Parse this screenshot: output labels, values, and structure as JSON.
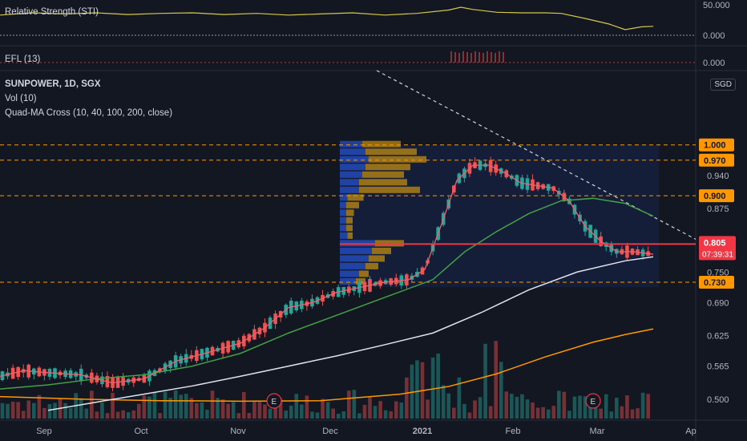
{
  "chart_data": {
    "type": "candlestick",
    "symbol": "SUNPOWER",
    "interval": "1D",
    "exchange": "SGX",
    "currency": "SGD",
    "indicators": {
      "sti_label": "Relative Strength (STI)",
      "efl_label": "EFL (13)",
      "vol_label": "Vol (10)",
      "ma_label": "Quad-MA Cross (10, 40, 100, 200, close)"
    },
    "sti_ticks": [
      "50.000",
      "0.000"
    ],
    "efl_ticks": [
      "0.000"
    ],
    "price_ticks": [
      "0.940",
      "0.875",
      "0.750",
      "0.690",
      "0.625",
      "0.565",
      "0.500"
    ],
    "x_ticks": [
      "Sep",
      "Oct",
      "Nov",
      "Dec",
      "2021",
      "Feb",
      "Mar",
      "Ap"
    ],
    "levels": [
      {
        "price": "1.000",
        "value": 1.0
      },
      {
        "price": "0.970",
        "value": 0.97
      },
      {
        "price": "0.900",
        "value": 0.9
      },
      {
        "price": "0.730",
        "value": 0.73
      }
    ],
    "last_price": {
      "label": "0.805",
      "value": 0.805,
      "countdown": "07:39:31"
    },
    "earnings_marker": "E",
    "colors": {
      "up": "#26a69a",
      "down": "#ef5350",
      "level": "#ff9800",
      "ma10": "#f06070",
      "ma40": "#43a047",
      "ma100": "#e0e3eb",
      "ma200": "#ff9800",
      "sti": "#d4c84a",
      "last": "#f23645"
    },
    "price_range": [
      0.465,
      1.08
    ],
    "ma10": [
      [
        0,
        0.545
      ],
      [
        30,
        0.556
      ],
      [
        60,
        0.552
      ],
      [
        100,
        0.548
      ],
      [
        140,
        0.532
      ],
      [
        180,
        0.54
      ],
      [
        220,
        0.575
      ],
      [
        260,
        0.592
      ],
      [
        300,
        0.61
      ],
      [
        330,
        0.64
      ],
      [
        360,
        0.68
      ],
      [
        390,
        0.69
      ],
      [
        420,
        0.71
      ],
      [
        450,
        0.72
      ],
      [
        480,
        0.73
      ],
      [
        510,
        0.735
      ],
      [
        530,
        0.755
      ],
      [
        550,
        0.84
      ],
      [
        570,
        0.93
      ],
      [
        590,
        0.96
      ],
      [
        610,
        0.96
      ],
      [
        630,
        0.945
      ],
      [
        650,
        0.925
      ],
      [
        670,
        0.92
      ],
      [
        690,
        0.915
      ],
      [
        710,
        0.89
      ],
      [
        730,
        0.84
      ],
      [
        750,
        0.81
      ],
      [
        770,
        0.79
      ],
      [
        790,
        0.79
      ],
      [
        815,
        0.785
      ]
    ],
    "ma40": [
      [
        0,
        0.52
      ],
      [
        60,
        0.528
      ],
      [
        120,
        0.54
      ],
      [
        180,
        0.548
      ],
      [
        240,
        0.565
      ],
      [
        300,
        0.59
      ],
      [
        360,
        0.63
      ],
      [
        420,
        0.665
      ],
      [
        480,
        0.7
      ],
      [
        540,
        0.735
      ],
      [
        580,
        0.79
      ],
      [
        620,
        0.83
      ],
      [
        660,
        0.865
      ],
      [
        700,
        0.89
      ],
      [
        740,
        0.895
      ],
      [
        780,
        0.885
      ],
      [
        815,
        0.86
      ]
    ],
    "ma100": [
      [
        60,
        0.478
      ],
      [
        120,
        0.494
      ],
      [
        180,
        0.51
      ],
      [
        240,
        0.526
      ],
      [
        300,
        0.545
      ],
      [
        360,
        0.565
      ],
      [
        420,
        0.585
      ],
      [
        480,
        0.607
      ],
      [
        540,
        0.63
      ],
      [
        600,
        0.67
      ],
      [
        660,
        0.715
      ],
      [
        720,
        0.75
      ],
      [
        780,
        0.772
      ],
      [
        815,
        0.78
      ]
    ],
    "ma200": [
      [
        0,
        0.505
      ],
      [
        100,
        0.5
      ],
      [
        200,
        0.497
      ],
      [
        300,
        0.496
      ],
      [
        400,
        0.497
      ],
      [
        500,
        0.51
      ],
      [
        560,
        0.525
      ],
      [
        620,
        0.55
      ],
      [
        680,
        0.583
      ],
      [
        740,
        0.612
      ],
      [
        780,
        0.627
      ],
      [
        815,
        0.638
      ]
    ],
    "sti_series": [
      [
        0,
        0.72
      ],
      [
        40,
        0.8
      ],
      [
        80,
        0.76
      ],
      [
        120,
        0.8
      ],
      [
        160,
        0.74
      ],
      [
        200,
        0.78
      ],
      [
        240,
        0.8
      ],
      [
        280,
        0.74
      ],
      [
        320,
        0.78
      ],
      [
        360,
        0.72
      ],
      [
        400,
        0.76
      ],
      [
        440,
        0.8
      ],
      [
        480,
        0.72
      ],
      [
        520,
        0.78
      ],
      [
        560,
        0.9
      ],
      [
        575,
        1.0
      ],
      [
        590,
        0.92
      ],
      [
        620,
        0.82
      ],
      [
        650,
        0.8
      ],
      [
        680,
        0.8
      ],
      [
        700,
        0.78
      ],
      [
        730,
        0.6
      ],
      [
        760,
        0.4
      ],
      [
        780,
        0.2
      ],
      [
        800,
        0.3
      ],
      [
        815,
        0.32
      ]
    ],
    "profile": [
      {
        "p": 1.0,
        "a": 0.35,
        "b": 0.6
      },
      {
        "p": 0.985,
        "a": 0.4,
        "b": 0.8
      },
      {
        "p": 0.97,
        "a": 0.45,
        "b": 0.9
      },
      {
        "p": 0.955,
        "a": 0.4,
        "b": 0.7
      },
      {
        "p": 0.94,
        "a": 0.35,
        "b": 0.65
      },
      {
        "p": 0.925,
        "a": 0.3,
        "b": 0.75
      },
      {
        "p": 0.91,
        "a": 0.3,
        "b": 0.95
      },
      {
        "p": 0.895,
        "a": 0.12,
        "b": 0.25
      },
      {
        "p": 0.88,
        "a": 0.1,
        "b": 0.2
      },
      {
        "p": 0.865,
        "a": 0.1,
        "b": 0.12
      },
      {
        "p": 0.85,
        "a": 0.1,
        "b": 0.1
      },
      {
        "p": 0.835,
        "a": 0.1,
        "b": 0.1
      },
      {
        "p": 0.82,
        "a": 0.12,
        "b": 0.08
      },
      {
        "p": 0.805,
        "a": 0.55,
        "b": 0.45
      },
      {
        "p": 0.79,
        "a": 0.5,
        "b": 0.3
      },
      {
        "p": 0.775,
        "a": 0.45,
        "b": 0.25
      },
      {
        "p": 0.76,
        "a": 0.4,
        "b": 0.2
      },
      {
        "p": 0.745,
        "a": 0.3,
        "b": 0.15
      },
      {
        "p": 0.73,
        "a": 0.25,
        "b": 0.15
      }
    ]
  }
}
